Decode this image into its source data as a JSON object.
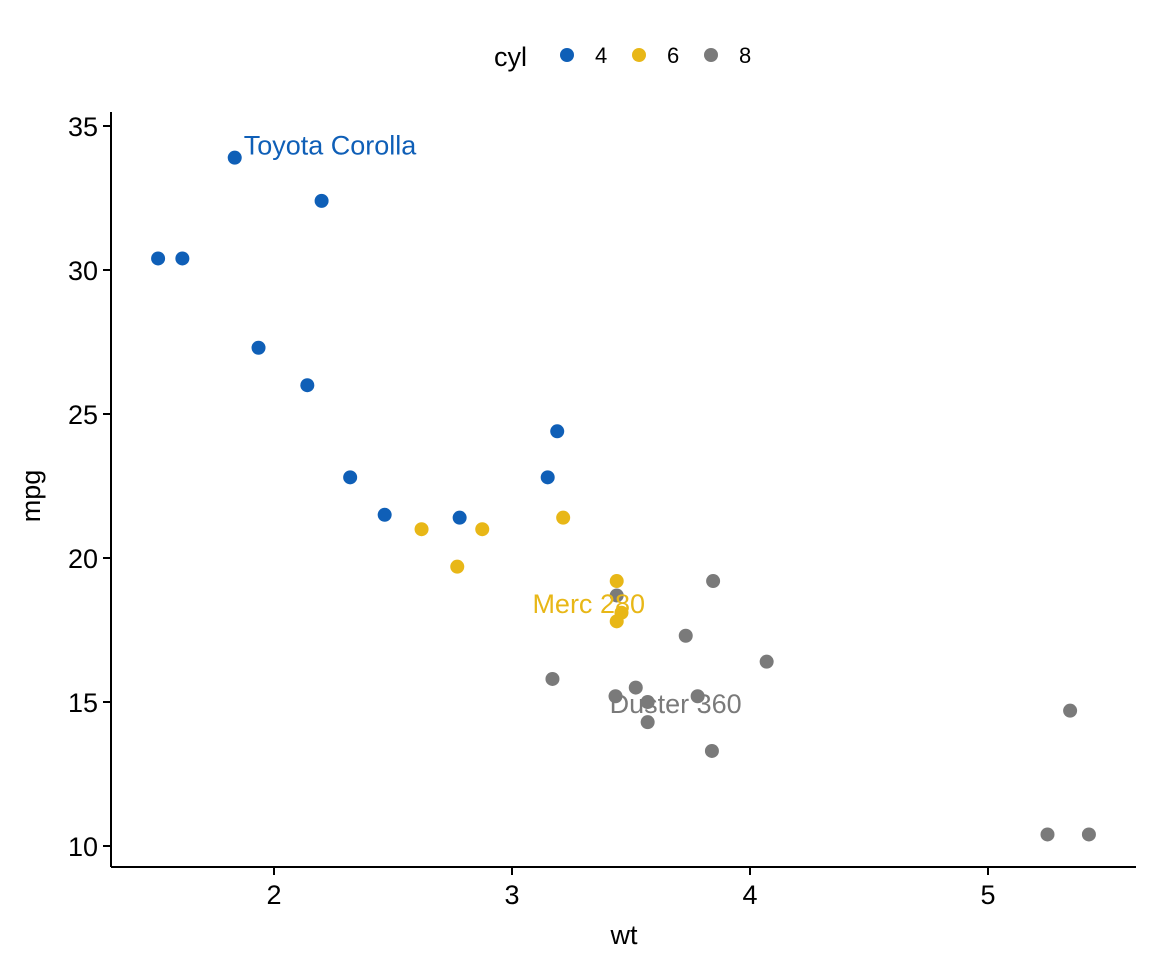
{
  "chart_data": {
    "type": "scatter",
    "title": "",
    "xlabel": "wt",
    "ylabel": "mpg",
    "xlim": [
      1.33,
      5.63
    ],
    "ylim": [
      9.3,
      35.4
    ],
    "xticks": [
      2,
      3,
      4,
      5
    ],
    "yticks": [
      10,
      15,
      20,
      25,
      30,
      35
    ],
    "grid": false,
    "legend": {
      "title": "cyl",
      "position": "top"
    },
    "series": [
      {
        "name": "4",
        "color": "#0f5fb7",
        "points": [
          {
            "x": 2.32,
            "y": 22.8
          },
          {
            "x": 3.19,
            "y": 24.4
          },
          {
            "x": 3.15,
            "y": 22.8
          },
          {
            "x": 2.2,
            "y": 32.4
          },
          {
            "x": 1.615,
            "y": 30.4
          },
          {
            "x": 1.835,
            "y": 33.9
          },
          {
            "x": 2.465,
            "y": 21.5
          },
          {
            "x": 1.935,
            "y": 27.3
          },
          {
            "x": 2.14,
            "y": 26.0
          },
          {
            "x": 1.513,
            "y": 30.4
          },
          {
            "x": 2.78,
            "y": 21.4
          }
        ]
      },
      {
        "name": "6",
        "color": "#e8b717",
        "points": [
          {
            "x": 2.62,
            "y": 21.0
          },
          {
            "x": 2.875,
            "y": 21.0
          },
          {
            "x": 3.215,
            "y": 21.4
          },
          {
            "x": 3.46,
            "y": 18.1
          },
          {
            "x": 3.44,
            "y": 19.2
          },
          {
            "x": 3.44,
            "y": 17.8
          },
          {
            "x": 2.77,
            "y": 19.7
          }
        ]
      },
      {
        "name": "8",
        "color": "#7a7a7a",
        "points": [
          {
            "x": 3.44,
            "y": 18.7
          },
          {
            "x": 3.57,
            "y": 14.3
          },
          {
            "x": 4.07,
            "y": 16.4
          },
          {
            "x": 3.73,
            "y": 17.3
          },
          {
            "x": 3.78,
            "y": 15.2
          },
          {
            "x": 5.25,
            "y": 10.4
          },
          {
            "x": 5.424,
            "y": 10.4
          },
          {
            "x": 5.345,
            "y": 14.7
          },
          {
            "x": 3.52,
            "y": 15.5
          },
          {
            "x": 3.435,
            "y": 15.2
          },
          {
            "x": 3.84,
            "y": 13.3
          },
          {
            "x": 3.845,
            "y": 19.2
          },
          {
            "x": 3.17,
            "y": 15.8
          },
          {
            "x": 3.57,
            "y": 15.0
          }
        ]
      }
    ],
    "annotations": [
      {
        "text": "Toyota Corolla",
        "x": 1.835,
        "y": 33.9,
        "series": "4"
      },
      {
        "text": "Merc 280",
        "x": 3.44,
        "y": 19.2,
        "series": "6"
      },
      {
        "text": "Duster 360",
        "x": 3.57,
        "y": 14.3,
        "series": "8"
      }
    ]
  }
}
